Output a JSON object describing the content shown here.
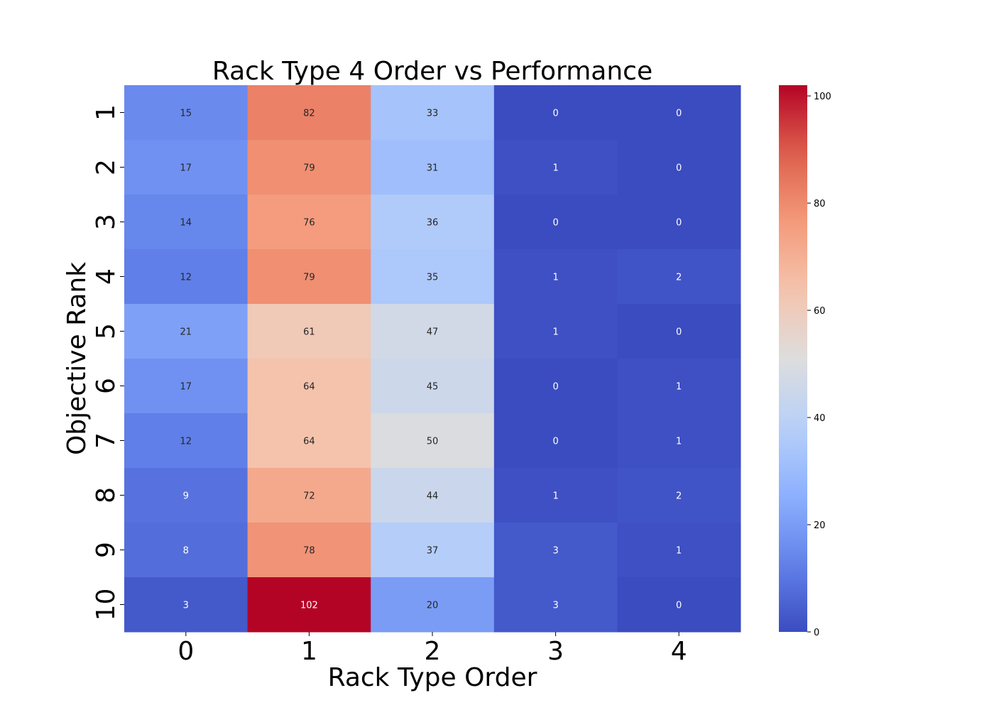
{
  "chart_data": {
    "type": "heatmap",
    "title": "Rack Type 4 Order vs Performance",
    "xlabel": "Rack Type Order",
    "ylabel": "Objective Rank",
    "x_categories": [
      "0",
      "1",
      "2",
      "3",
      "4"
    ],
    "y_categories": [
      "1",
      "2",
      "3",
      "4",
      "5",
      "6",
      "7",
      "8",
      "9",
      "10"
    ],
    "values": [
      [
        15,
        82,
        33,
        0,
        0
      ],
      [
        17,
        79,
        31,
        1,
        0
      ],
      [
        14,
        76,
        36,
        0,
        0
      ],
      [
        12,
        79,
        35,
        1,
        2
      ],
      [
        21,
        61,
        47,
        1,
        0
      ],
      [
        17,
        64,
        45,
        0,
        1
      ],
      [
        12,
        64,
        50,
        0,
        1
      ],
      [
        9,
        72,
        44,
        1,
        2
      ],
      [
        8,
        78,
        37,
        3,
        1
      ],
      [
        3,
        102,
        20,
        3,
        0
      ]
    ],
    "colormap": "coolwarm",
    "vmin": 0,
    "vmax": 102,
    "colorbar_ticks": [
      "0",
      "20",
      "40",
      "60",
      "80",
      "100"
    ],
    "annotations": true,
    "grid": false,
    "colorbar_placement": "right"
  }
}
